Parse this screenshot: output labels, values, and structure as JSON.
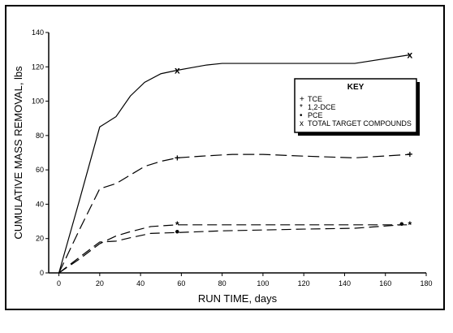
{
  "chart_data": {
    "type": "line",
    "xlabel": "RUN TIME, days",
    "ylabel": "CUMULATIVE MASS REMOVAL, lbs",
    "xlim": [
      -5,
      180
    ],
    "ylim": [
      0,
      140
    ],
    "xticks": [
      0,
      20,
      40,
      60,
      80,
      100,
      120,
      140,
      160,
      180
    ],
    "yticks": [
      0,
      20,
      40,
      60,
      80,
      100,
      120,
      140
    ],
    "legend": {
      "title": "KEY",
      "placement": "top-right",
      "entries": [
        {
          "symbol": "+",
          "label": "TCE"
        },
        {
          "symbol": "*",
          "label": "1,2-DCE"
        },
        {
          "symbol": "•",
          "label": "PCE"
        },
        {
          "symbol": "x",
          "label": "TOTAL TARGET COMPOUNDS"
        }
      ]
    },
    "series": [
      {
        "marker": "x",
        "x": [
          0,
          10,
          20,
          28,
          35,
          42,
          50,
          58,
          65,
          72,
          80,
          90,
          100,
          120,
          145,
          172
        ],
        "y": [
          0,
          42,
          85,
          91,
          103,
          111,
          116,
          118,
          119.5,
          121,
          122,
          122,
          122,
          122,
          122,
          127
        ],
        "marker_points": [
          [
            58,
            118
          ],
          [
            172,
            127
          ]
        ]
      },
      {
        "marker": "+",
        "x": [
          0,
          10,
          20,
          28,
          35,
          42,
          50,
          58,
          70,
          85,
          100,
          120,
          145,
          172
        ],
        "y": [
          0,
          25,
          49,
          52,
          57,
          62,
          65,
          67,
          68,
          69,
          69,
          68,
          67,
          69
        ],
        "marker_points": [
          [
            58,
            67
          ],
          [
            172,
            69
          ]
        ]
      },
      {
        "marker": "*",
        "x": [
          0,
          10,
          20,
          28,
          35,
          45,
          58,
          80,
          100,
          120,
          145,
          172
        ],
        "y": [
          0,
          8,
          17,
          21.5,
          24,
          27,
          28,
          28,
          28,
          28,
          28,
          28
        ],
        "marker_points": [
          [
            58,
            28
          ],
          [
            172,
            28
          ]
        ]
      },
      {
        "marker": "•",
        "x": [
          0,
          10,
          20,
          28,
          35,
          45,
          58,
          80,
          100,
          120,
          145,
          168
        ],
        "y": [
          0,
          9,
          18,
          18.5,
          20.5,
          23,
          23.5,
          24.5,
          25,
          25.5,
          26,
          28
        ],
        "marker_points": [
          [
            58,
            23.5
          ],
          [
            168,
            28
          ]
        ]
      }
    ]
  }
}
